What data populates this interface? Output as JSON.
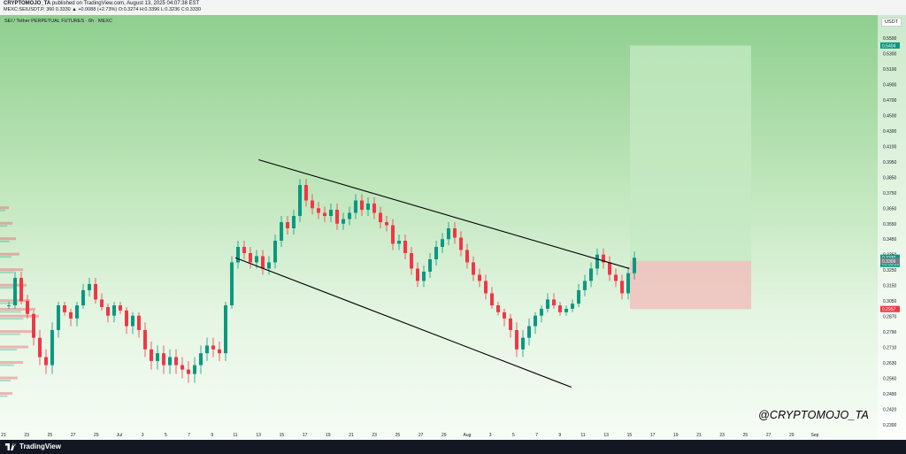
{
  "header": {
    "author": "CRYPTOMOJO_TA",
    "published": "published on TradingView.com, August 13, 2025 04:07:38 EST",
    "ohlc": "MEXC:SEIUSDT.P, 360 0.3330 ▲ +0.0088 (+2.73%) O:0.3274 H:0.3396 L:0.3236 C:0.3330"
  },
  "chart": {
    "symbol_line": "SEI / Tether PERPETUAL FUTURES · 6h · MEXC",
    "currency": "USDT",
    "watermark": "@CRYPTOMOJO_TA",
    "colors": {
      "up": "#089981",
      "down": "#f23645",
      "background_top": "#8fcf8f",
      "target_zone": "#c6e9c4",
      "stop_zone": "#f3b9b9"
    }
  },
  "footer": {
    "brand": "TradingView"
  },
  "chart_data": {
    "type": "candlestick",
    "title": "",
    "y_axis_labels": [
      "0.5500",
      "0.5300",
      "0.5100",
      "0.4900",
      "0.4700",
      "0.4500",
      "0.4300",
      "0.4100",
      "0.3950",
      "0.3850",
      "0.3750",
      "0.3650",
      "0.3550",
      "0.3450",
      "0.3350",
      "0.3250",
      "0.3150",
      "0.3050",
      "0.2870",
      "0.2790",
      "0.2710",
      "0.2630",
      "0.2560",
      "0.2490",
      "0.2420",
      "0.2300"
    ],
    "x_axis_labels": [
      "21",
      "23",
      "25",
      "27",
      "29",
      "Jul",
      "3",
      "5",
      "7",
      "9",
      "11",
      "13",
      "15",
      "17",
      "19",
      "21",
      "23",
      "25",
      "27",
      "29",
      "Aug",
      "3",
      "5",
      "7",
      "9",
      "11",
      "13",
      "15",
      "17",
      "19",
      "21",
      "23",
      "25",
      "27",
      "29",
      "Sep"
    ],
    "price_tags": [
      {
        "label": "0.5404",
        "role": "target"
      },
      {
        "label": "0.3330",
        "role": "last price"
      },
      {
        "label": "01:53:22",
        "role": "countdown"
      },
      {
        "label": "0.3309",
        "role": "entry"
      },
      {
        "label": "0.2957",
        "role": "stop"
      }
    ],
    "approx_closes": [
      0.3,
      0.32,
      0.305,
      0.29,
      0.276,
      0.266,
      0.262,
      0.28,
      0.3,
      0.292,
      0.286,
      0.3,
      0.312,
      0.316,
      0.306,
      0.298,
      0.288,
      0.3,
      0.294,
      0.282,
      0.288,
      0.28,
      0.27,
      0.264,
      0.268,
      0.262,
      0.266,
      0.262,
      0.26,
      0.258,
      0.262,
      0.268,
      0.272,
      0.27,
      0.268,
      0.3,
      0.33,
      0.34,
      0.336,
      0.33,
      0.334,
      0.326,
      0.33,
      0.344,
      0.356,
      0.352,
      0.36,
      0.38,
      0.37,
      0.365,
      0.362,
      0.36,
      0.364,
      0.355,
      0.358,
      0.362,
      0.37,
      0.364,
      0.368,
      0.362,
      0.356,
      0.354,
      0.342,
      0.344,
      0.336,
      0.326,
      0.318,
      0.324,
      0.332,
      0.34,
      0.345,
      0.352,
      0.346,
      0.338,
      0.33,
      0.322,
      0.318,
      0.31,
      0.3,
      0.292,
      0.286,
      0.28,
      0.27,
      0.276,
      0.282,
      0.288,
      0.296,
      0.306,
      0.3,
      0.292,
      0.296,
      0.302,
      0.312,
      0.318,
      0.326,
      0.335,
      0.33,
      0.322,
      0.318,
      0.31,
      0.323,
      0.333
    ],
    "lines": [
      {
        "name": "upper trendline",
        "points": [
          [
            "Jul 13",
            0.397
          ],
          [
            "Aug 14",
            0.326
          ]
        ]
      },
      {
        "name": "lower trendline",
        "points": [
          [
            "Jul 11",
            0.333
          ],
          [
            "Aug 9",
            0.252
          ]
        ]
      }
    ],
    "zones": [
      {
        "name": "take profit",
        "from": 0.3309,
        "to": 0.5404
      },
      {
        "name": "stop loss",
        "from": 0.2957,
        "to": 0.3309
      }
    ],
    "grid": false
  }
}
